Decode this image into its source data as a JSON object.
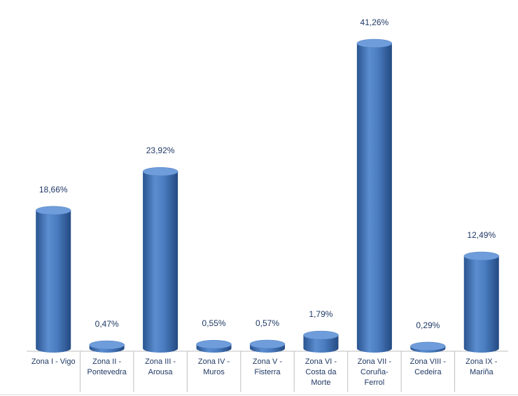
{
  "chart_data": {
    "type": "bar",
    "categories": [
      "Zona I - Vigo",
      "Zona II - Pontevedra",
      "Zona III - Arousa",
      "Zona IV - Muros",
      "Zona V - Fisterra",
      "Zona VI - Costa da Morte",
      "Zona VII - Coruña-Ferrol",
      "Zona VIII - Cedeira",
      "Zona IX - Mariña"
    ],
    "values": [
      18.66,
      0.47,
      23.92,
      0.55,
      0.57,
      1.79,
      41.26,
      0.29,
      12.49
    ],
    "value_labels": [
      "18,66%",
      "0,47%",
      "23,92%",
      "0,55%",
      "0,57%",
      "1,79%",
      "41,26%",
      "0,29%",
      "12,49%"
    ],
    "color": "#4a7cc0"
  }
}
